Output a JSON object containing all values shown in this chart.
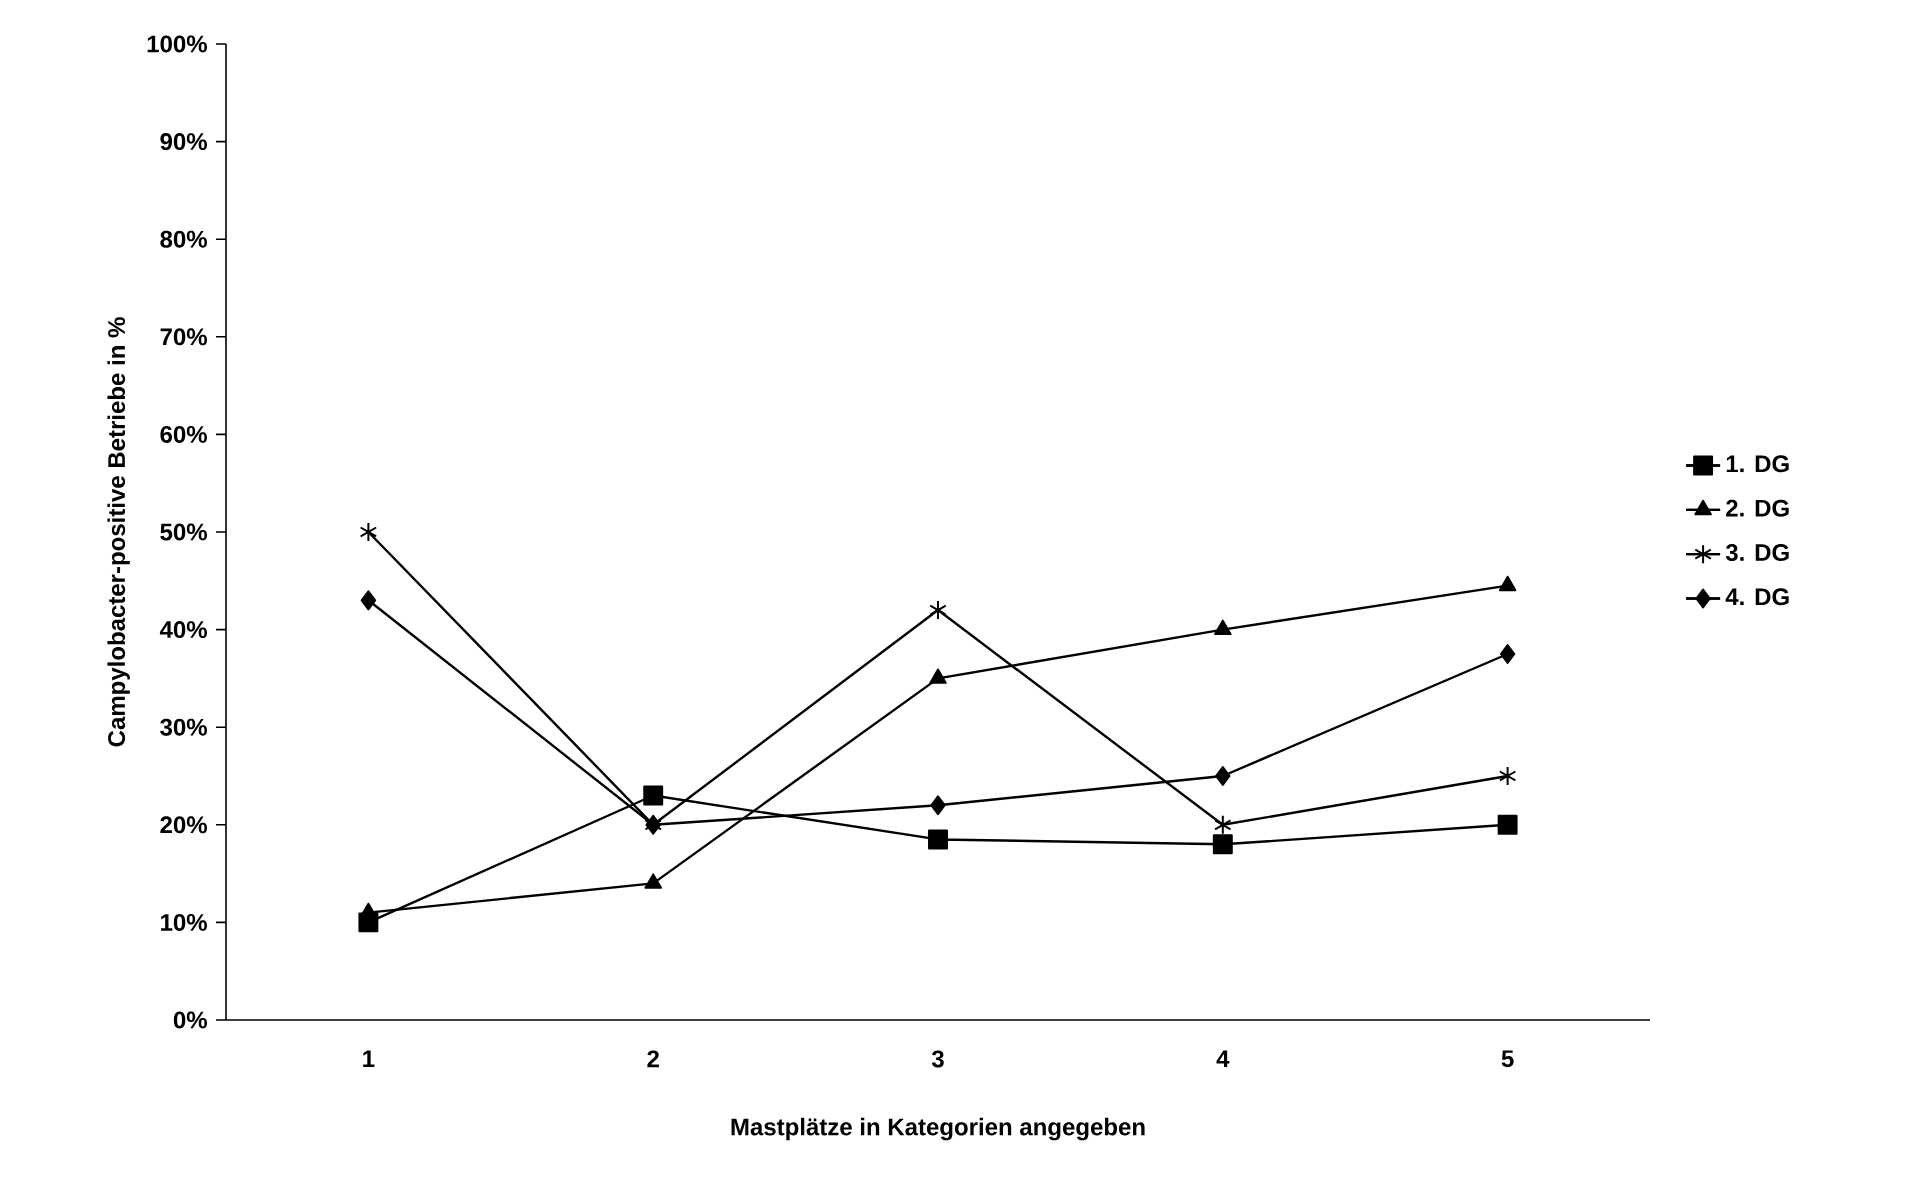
{
  "chart_data": {
    "type": "line",
    "xlabel": "Mastplätze in Kategorien angegeben",
    "ylabel": "Campylobacter-positive Betriebe in %",
    "categories": [
      "1",
      "2",
      "3",
      "4",
      "5"
    ],
    "ylim": [
      0,
      100
    ],
    "yticks": [
      {
        "value": 0,
        "label": "0%"
      },
      {
        "value": 10,
        "label": "10%"
      },
      {
        "value": 20,
        "label": "20%"
      },
      {
        "value": 30,
        "label": "30%"
      },
      {
        "value": 40,
        "label": "40%"
      },
      {
        "value": 50,
        "label": "50%"
      },
      {
        "value": 60,
        "label": "60%"
      },
      {
        "value": 70,
        "label": "70%"
      },
      {
        "value": 80,
        "label": "80%"
      },
      {
        "value": 90,
        "label": "90%"
      },
      {
        "value": 100,
        "label": "100%"
      }
    ],
    "legend": "right",
    "grid": false,
    "line_style": "solid",
    "series": [
      {
        "name": "1. DG",
        "color": "#000000",
        "marker": "square",
        "values": [
          10,
          23,
          18.5,
          18,
          20
        ]
      },
      {
        "name": "2. DG",
        "color": "#000000",
        "marker": "triangle",
        "values": [
          11,
          14,
          35,
          40,
          44.5
        ]
      },
      {
        "name": "3. DG",
        "color": "#000000",
        "marker": "cross",
        "values": [
          50,
          20,
          42,
          20,
          25
        ]
      },
      {
        "name": "4. DG",
        "color": "#000000",
        "marker": "diamond",
        "values": [
          43,
          20,
          22,
          25,
          37.5
        ]
      }
    ]
  }
}
